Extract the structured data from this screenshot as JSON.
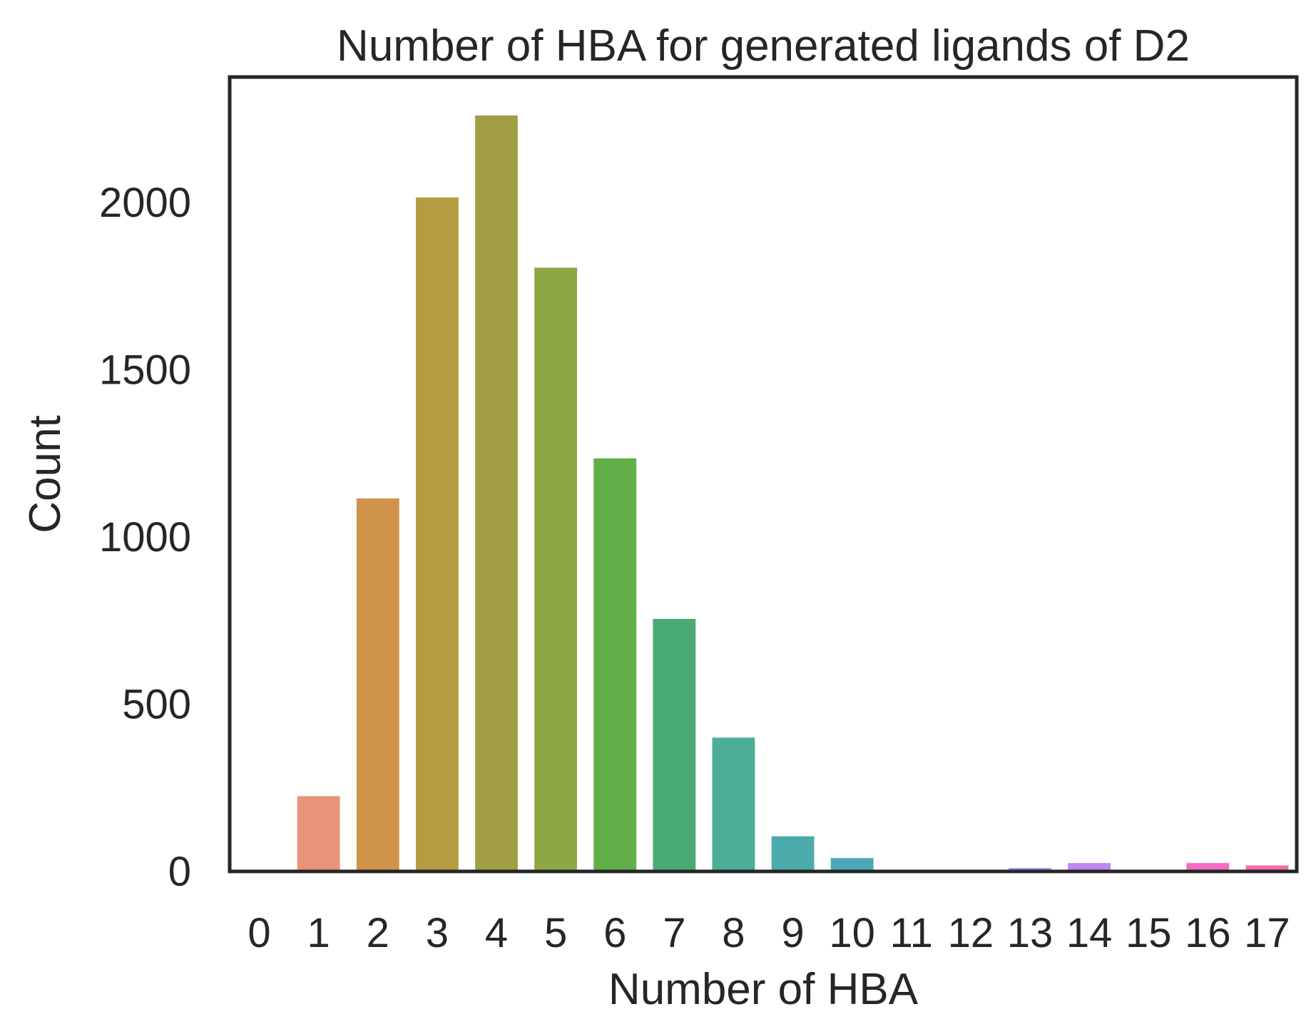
{
  "chart_data": {
    "type": "bar",
    "title": "Number of HBA for generated ligands of D2",
    "xlabel": "Number of HBA",
    "ylabel": "Count",
    "categories": [
      "0",
      "1",
      "2",
      "3",
      "4",
      "5",
      "6",
      "7",
      "8",
      "9",
      "10",
      "11",
      "12",
      "13",
      "14",
      "15",
      "16",
      "17"
    ],
    "values": [
      0,
      225,
      1115,
      2015,
      2260,
      1805,
      1235,
      755,
      400,
      105,
      40,
      0,
      0,
      10,
      25,
      0,
      25,
      18
    ],
    "colors": [
      "#f77189",
      "#e8937a",
      "#cf9349",
      "#b59c43",
      "#a29e43",
      "#8ea644",
      "#62ae49",
      "#4aaa76",
      "#4aaf96",
      "#4babaa",
      "#4ca8b8",
      "#4ea6c9",
      "#55a0dc",
      "#8b96f0",
      "#c087f0",
      "#e17cd8",
      "#f36dc4",
      "#f46fa7"
    ],
    "yticks": [
      0,
      500,
      1000,
      1500,
      2000
    ],
    "ylim": [
      0,
      2375
    ],
    "grid": false,
    "legend": "none"
  }
}
